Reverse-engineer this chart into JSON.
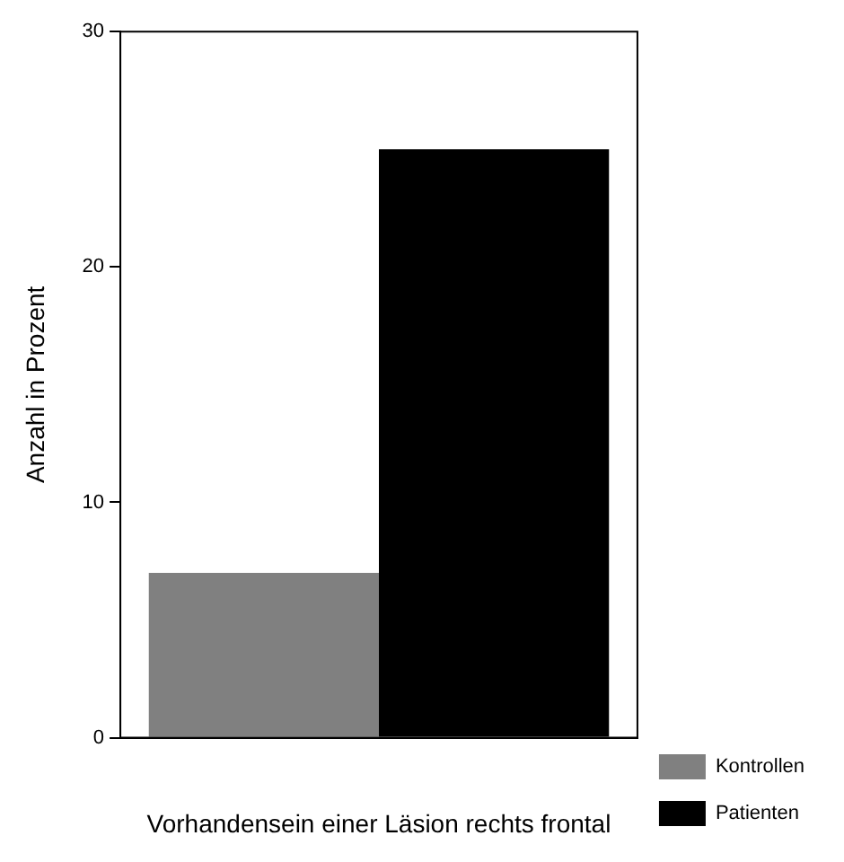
{
  "chart_data": {
    "type": "bar",
    "xlabel": "Vorhandensein einer Läsion rechts frontal",
    "ylabel": "Anzahl in Prozent",
    "categories": [
      null
    ],
    "series": [
      {
        "name": "Kontrollen",
        "color": "#808080",
        "values": [
          7
        ]
      },
      {
        "name": "Patienten",
        "color": "#000000",
        "values": [
          25
        ]
      }
    ],
    "ylim": [
      0,
      30
    ],
    "yticks": [
      0,
      10,
      20,
      30
    ],
    "grid": false,
    "legend": "bottom right"
  }
}
